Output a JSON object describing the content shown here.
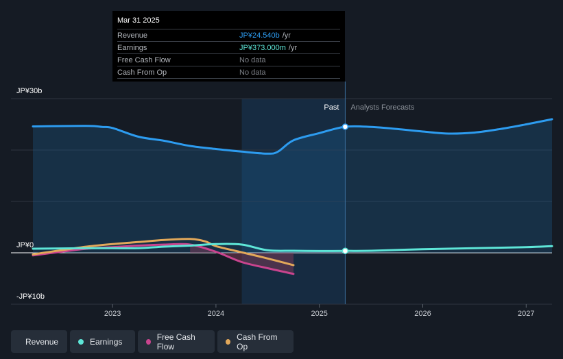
{
  "tooltip": {
    "date": "Mar 31 2025",
    "rows": [
      {
        "label": "Revenue",
        "value": "JP¥24.540b",
        "unit": "/yr"
      },
      {
        "label": "Earnings",
        "value": "JP¥373.000m",
        "unit": "/yr"
      },
      {
        "label": "Free Cash Flow",
        "value": "No data",
        "unit": ""
      },
      {
        "label": "Cash From Op",
        "value": "No data",
        "unit": ""
      }
    ]
  },
  "legend": [
    {
      "label": "Revenue",
      "color": "#2d9cf0"
    },
    {
      "label": "Earnings",
      "color": "#5ee6d8"
    },
    {
      "label": "Free Cash Flow",
      "color": "#c9448e"
    },
    {
      "label": "Cash From Op",
      "color": "#e2a85a"
    }
  ],
  "chart_data": {
    "type": "line",
    "title": "",
    "ylabel": "JPY",
    "ylim": [
      -10,
      30
    ],
    "xlim": [
      2022.23,
      2027.25
    ],
    "y_tick_labels": [
      {
        "value": 30,
        "label": "JP¥30b"
      },
      {
        "value": 0,
        "label": "JP¥0"
      },
      {
        "value": -10,
        "label": "-JP¥10b"
      }
    ],
    "x_ticks": [
      {
        "value": 2023,
        "label": "2023"
      },
      {
        "value": 2024,
        "label": "2024"
      },
      {
        "value": 2025,
        "label": "2025"
      },
      {
        "value": 2026,
        "label": "2026"
      },
      {
        "value": 2027,
        "label": "2027"
      }
    ],
    "past_label": "Past",
    "forecast_label": "Analysts Forecasts",
    "past_region": [
      2024.25,
      2025.25
    ],
    "divider_x": 2025.25,
    "series": [
      {
        "name": "Revenue",
        "color": "#2d9cf0",
        "x": [
          2022.23,
          2022.75,
          2022.9,
          2023.0,
          2023.25,
          2023.5,
          2023.75,
          2024.0,
          2024.25,
          2024.5,
          2024.6,
          2024.75,
          2025.0,
          2025.25,
          2025.5,
          2025.75,
          2026.0,
          2026.25,
          2026.5,
          2026.75,
          2027.0,
          2027.25
        ],
        "values": [
          24.6,
          24.7,
          24.5,
          24.3,
          22.6,
          21.8,
          20.8,
          20.2,
          19.7,
          19.3,
          19.7,
          21.9,
          23.3,
          24.54,
          24.5,
          24.1,
          23.6,
          23.2,
          23.4,
          24.1,
          25.0,
          26.0
        ]
      },
      {
        "name": "Earnings",
        "color": "#5ee6d8",
        "x": [
          2022.23,
          2022.75,
          2023.0,
          2023.25,
          2023.5,
          2023.75,
          2024.0,
          2024.25,
          2024.5,
          2024.75,
          2025.0,
          2025.25,
          2025.5,
          2026.0,
          2026.5,
          2027.0,
          2027.25
        ],
        "values": [
          0.8,
          0.9,
          0.9,
          0.9,
          1.2,
          1.4,
          1.7,
          1.6,
          0.5,
          0.4,
          0.35,
          0.373,
          0.4,
          0.7,
          0.9,
          1.1,
          1.3
        ]
      },
      {
        "name": "Free Cash Flow",
        "color": "#c9448e",
        "x": [
          2022.23,
          2022.5,
          2022.75,
          2023.0,
          2023.25,
          2023.5,
          2023.75,
          2024.0,
          2024.25,
          2024.5,
          2024.75
        ],
        "values": [
          -0.5,
          0.2,
          0.8,
          1.1,
          1.4,
          1.6,
          1.6,
          0.2,
          -1.8,
          -3.0,
          -4.1
        ]
      },
      {
        "name": "Cash From Op",
        "color": "#e2a85a",
        "x": [
          2022.23,
          2022.5,
          2022.75,
          2023.0,
          2023.25,
          2023.5,
          2023.75,
          2023.9,
          2024.0,
          2024.25,
          2024.5,
          2024.75
        ],
        "values": [
          -0.3,
          0.5,
          1.2,
          1.7,
          2.1,
          2.5,
          2.7,
          2.2,
          1.3,
          0.1,
          -1.1,
          -2.4
        ]
      }
    ],
    "highlight": {
      "x": 2025.25,
      "revenue": 24.54,
      "earnings": 0.373
    }
  }
}
